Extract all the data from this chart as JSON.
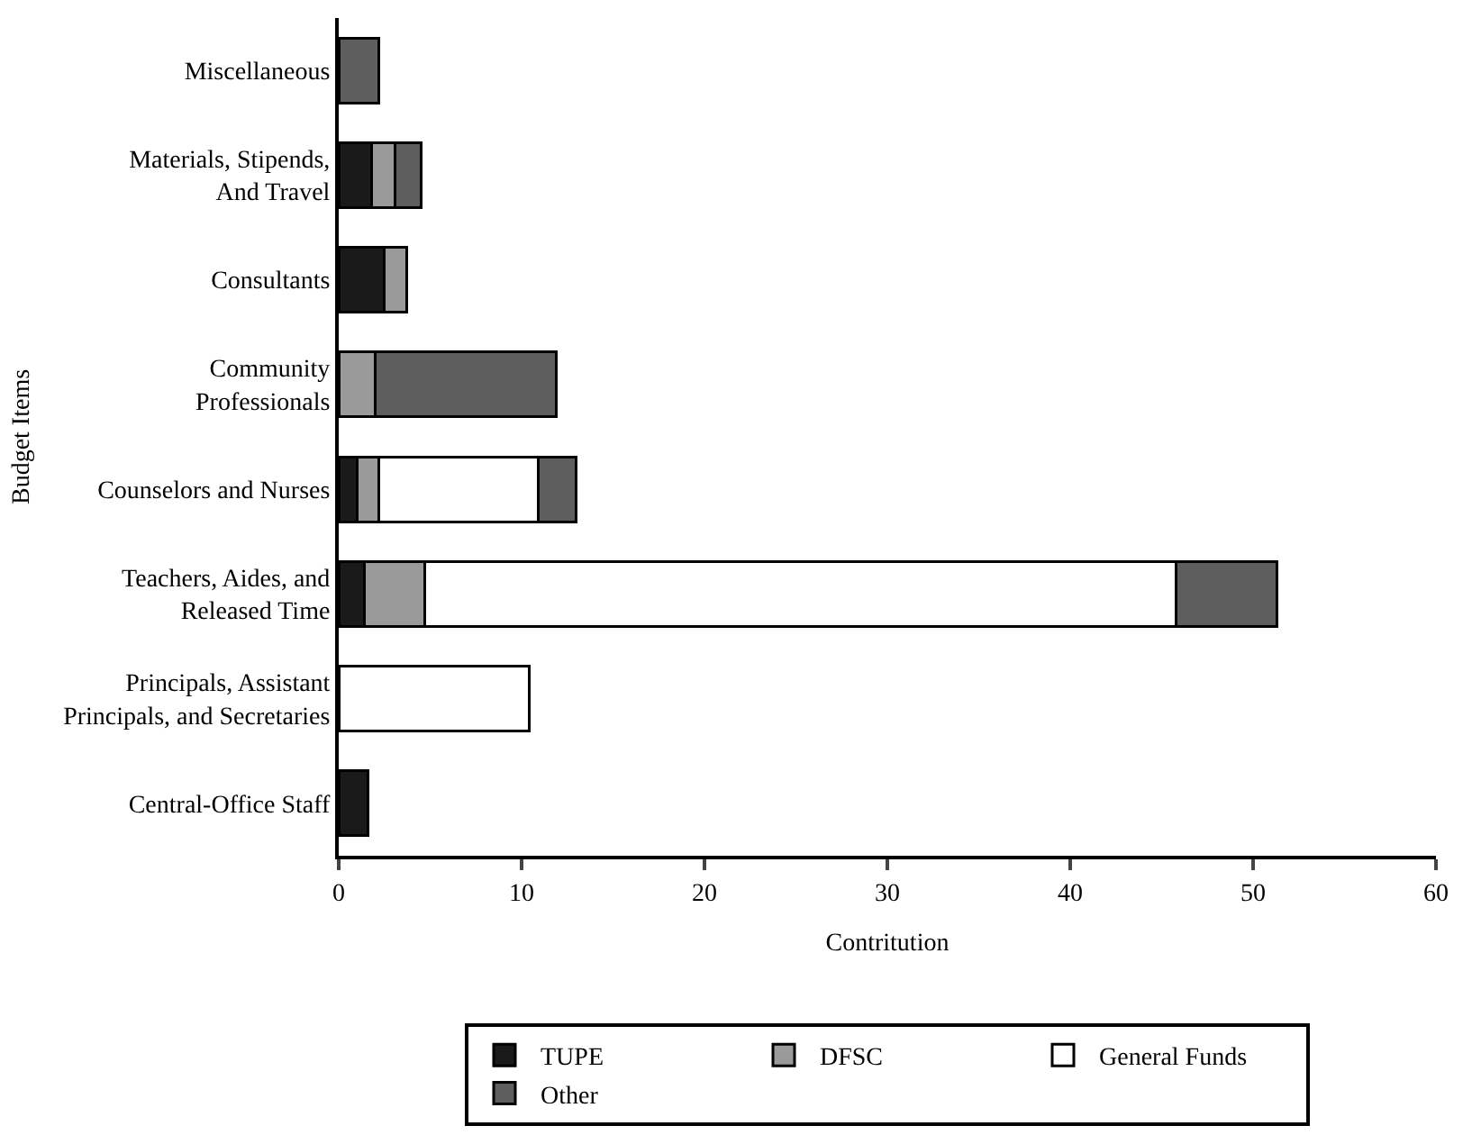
{
  "chart_data": {
    "type": "bar",
    "orientation": "horizontal",
    "stacked": true,
    "xlabel": "Contritution",
    "ylabel": "Budget Items",
    "categories": [
      "Miscellaneous",
      "Materials, Stipends,\nAnd Travel",
      "Consultants",
      "Community\nProfessionals",
      "Counselors and Nurses",
      "Teachers, Aides, and\nReleased Time",
      "Principals, Assistant\nPrincipals, and Secretaries",
      "Central-Office Staff"
    ],
    "series": [
      {
        "name": "TUPE",
        "color": "#1a1a1a",
        "values": [
          null,
          1.8,
          2.5,
          null,
          1.0,
          1.4,
          null,
          1.6
        ]
      },
      {
        "name": "DFSC",
        "color": "#9a9a9a",
        "values": [
          null,
          1.3,
          1.2,
          2.0,
          1.2,
          3.3,
          null,
          null
        ]
      },
      {
        "name": "General Funds",
        "color": "#ffffff",
        "values": [
          null,
          null,
          null,
          null,
          8.7,
          41.1,
          10.4,
          null
        ]
      },
      {
        "name": "Other",
        "color": "#5e5e5e",
        "values": [
          2.2,
          1.4,
          null,
          9.9,
          2.1,
          5.5,
          null,
          null
        ]
      }
    ],
    "xlim": [
      0,
      60
    ],
    "xticks": [
      0,
      10,
      20,
      30,
      40,
      50,
      60
    ],
    "legend": "bottom"
  }
}
